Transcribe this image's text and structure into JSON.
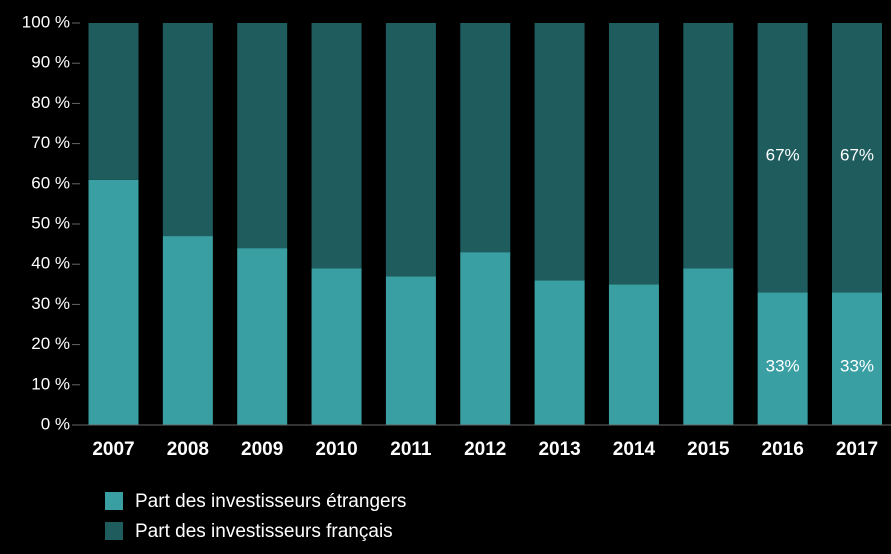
{
  "chart_data": {
    "type": "stacked_bar",
    "categories": [
      "2007",
      "2008",
      "2009",
      "2010",
      "2011",
      "2012",
      "2013",
      "2014",
      "2015",
      "2016",
      "2017"
    ],
    "series": [
      {
        "name": "Part des investisseurs étrangers",
        "color": "#3a9fa3",
        "values": [
          61,
          47,
          44,
          39,
          37,
          43,
          36,
          35,
          39,
          33,
          33
        ],
        "value_labels": [
          null,
          null,
          null,
          null,
          null,
          null,
          null,
          null,
          null,
          "33%",
          "33%"
        ]
      },
      {
        "name": "Part des investisseurs français",
        "color": "#1f5c5e",
        "values": [
          39,
          53,
          56,
          61,
          63,
          57,
          64,
          65,
          61,
          67,
          67
        ],
        "value_labels": [
          null,
          null,
          null,
          null,
          null,
          null,
          null,
          null,
          null,
          "67%",
          "67%"
        ]
      }
    ],
    "ylim": [
      0,
      100
    ],
    "yticks": [
      {
        "value": 0,
        "label": "0 %"
      },
      {
        "value": 10,
        "label": "10 %"
      },
      {
        "value": 20,
        "label": "20 %"
      },
      {
        "value": 30,
        "label": "30 %"
      },
      {
        "value": 40,
        "label": "40 %"
      },
      {
        "value": 50,
        "label": "50 %"
      },
      {
        "value": 60,
        "label": "60 %"
      },
      {
        "value": 70,
        "label": "70 %"
      },
      {
        "value": 80,
        "label": "80 %"
      },
      {
        "value": 90,
        "label": "90 %"
      },
      {
        "value": 100,
        "label": "100 %"
      }
    ],
    "legend": "bottom-left"
  }
}
